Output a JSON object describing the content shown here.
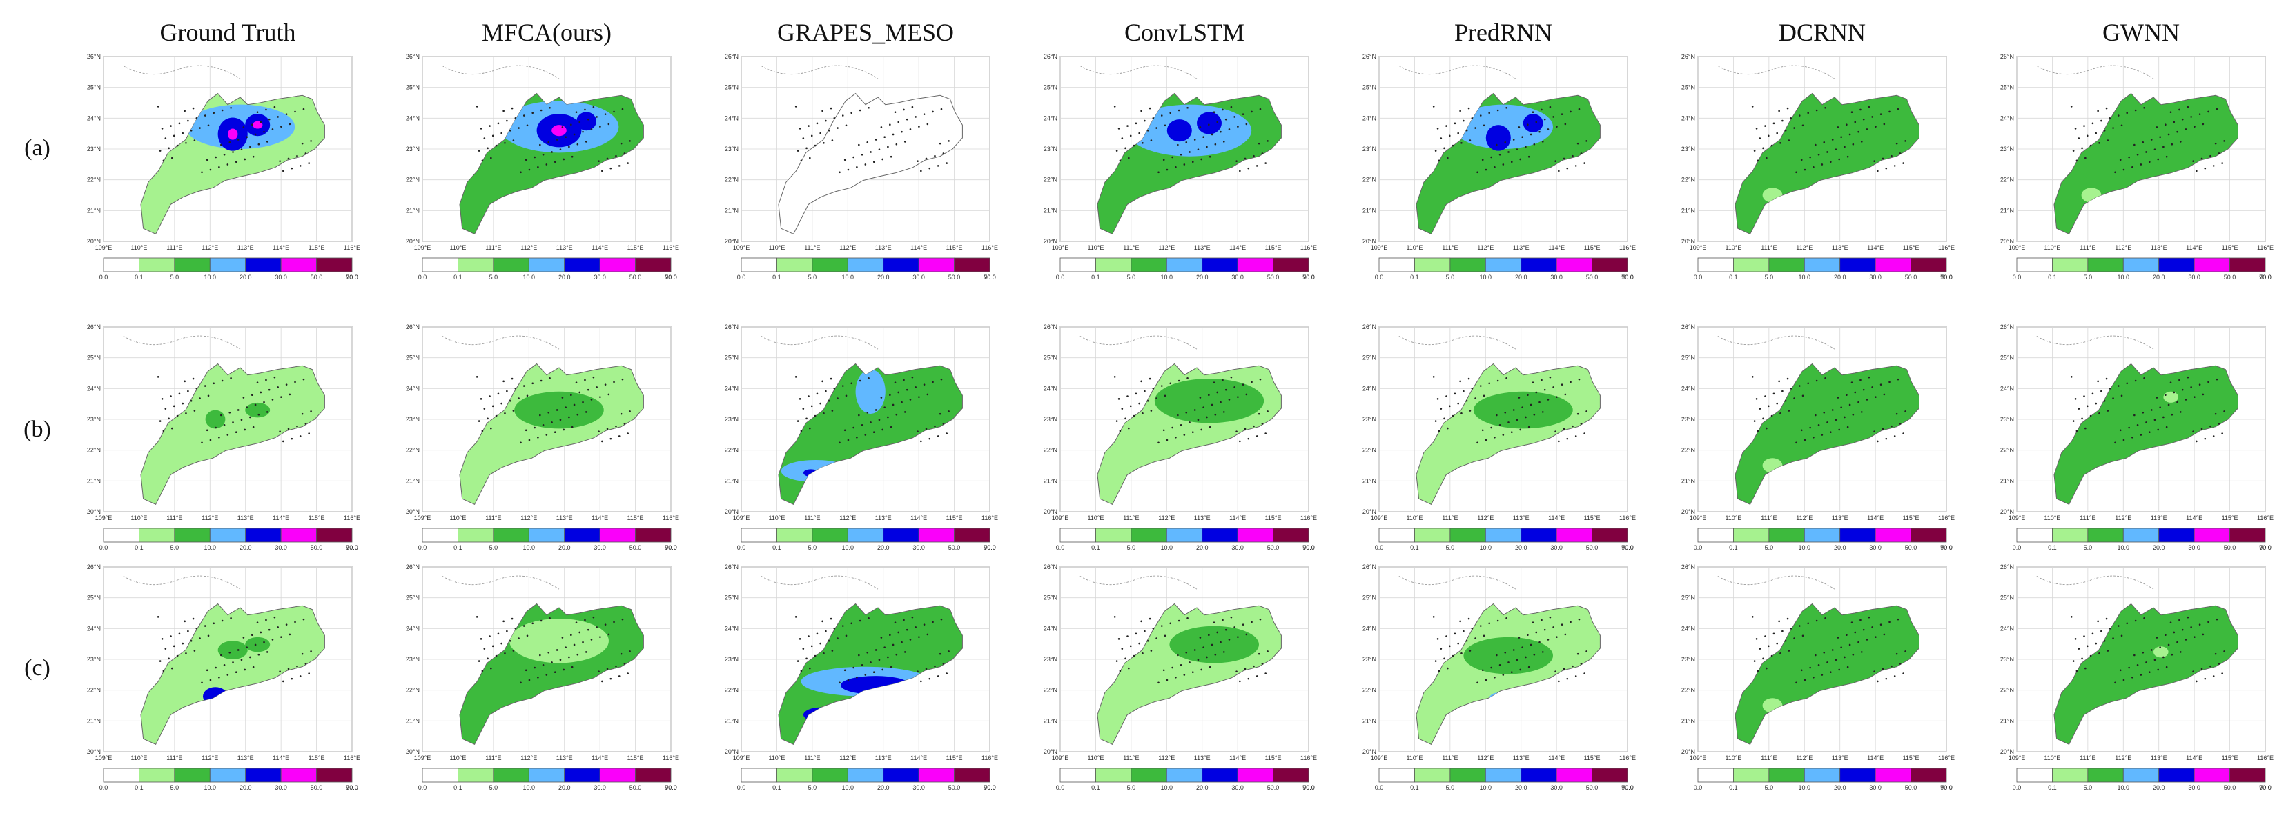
{
  "figure": {
    "columns": [
      "Ground Truth",
      "MFCA(ours)",
      "GRAPES_MESO",
      "ConvLSTM",
      "PredRNN",
      "DCRNN",
      "GWNN"
    ],
    "rows": [
      "(a)",
      "(b)",
      "(c)"
    ],
    "lat_ticks": [
      "20°N",
      "21°N",
      "22°N",
      "23°N",
      "24°N",
      "25°N",
      "26°N"
    ],
    "lon_ticks": [
      "109°E",
      "110°E",
      "111°E",
      "112°E",
      "113°E",
      "114°E",
      "115°E",
      "116°E"
    ],
    "colorbar_ticks": [
      "0.0",
      "0.1",
      "5.0",
      "10.0",
      "20.0",
      "30.0",
      "50.0",
      "70.0",
      "90.0"
    ],
    "colorbar_colors": [
      "#ffffff",
      "#a6f28f",
      "#3dba3d",
      "#61b8ff",
      "#0000e1",
      "#fa00fa",
      "#810040"
    ],
    "map_fill_colors": {
      "none": "#ffffff",
      "light_green": "#a6f28f",
      "green": "#3dba3d",
      "light_blue": "#61b8ff",
      "blue": "#0000e1",
      "magenta": "#fa00fa",
      "maroon": "#810040"
    },
    "panel_base_levels": [
      [
        "light_green",
        "green",
        "none",
        "green",
        "green",
        "green",
        "green"
      ],
      [
        "light_green",
        "light_green",
        "green",
        "light_green",
        "light_green",
        "green",
        "green"
      ],
      [
        "light_green",
        "green",
        "green",
        "light_green",
        "light_green",
        "green",
        "green"
      ]
    ]
  }
}
